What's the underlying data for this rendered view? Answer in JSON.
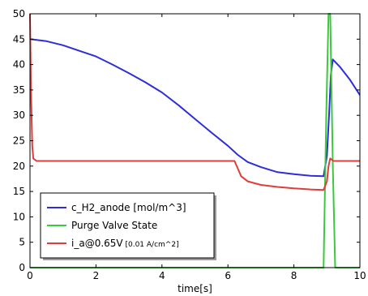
{
  "chart_data": {
    "type": "line",
    "title": "",
    "xlabel": "time[s]",
    "ylabel": "",
    "xlim": [
      0,
      10
    ],
    "ylim": [
      0,
      50
    ],
    "x_ticks": [
      "0",
      "2",
      "4",
      "6",
      "8",
      "10"
    ],
    "y_ticks": [
      "0",
      "5",
      "10",
      "15",
      "20",
      "25",
      "30",
      "35",
      "40",
      "45",
      "50"
    ],
    "grid": false,
    "legend_position": "bottom-left",
    "series": [
      {
        "name": "c_H2_anode [mol/m^3]",
        "color": "#2d2ddc",
        "points": [
          [
            0,
            45.0
          ],
          [
            0.5,
            44.6
          ],
          [
            1,
            43.8
          ],
          [
            1.5,
            42.7
          ],
          [
            2,
            41.6
          ],
          [
            2.5,
            40.0
          ],
          [
            3,
            38.3
          ],
          [
            3.5,
            36.5
          ],
          [
            4,
            34.5
          ],
          [
            4.5,
            32.0
          ],
          [
            5,
            29.3
          ],
          [
            5.5,
            26.6
          ],
          [
            6,
            24.0
          ],
          [
            6.3,
            22.2
          ],
          [
            6.6,
            20.8
          ],
          [
            7,
            19.8
          ],
          [
            7.5,
            18.8
          ],
          [
            8,
            18.4
          ],
          [
            8.5,
            18.1
          ],
          [
            8.9,
            18.0
          ],
          [
            9.0,
            22.0
          ],
          [
            9.07,
            30.5
          ],
          [
            9.12,
            38.0
          ],
          [
            9.18,
            41.0
          ],
          [
            9.4,
            39.5
          ],
          [
            9.7,
            37.0
          ],
          [
            10,
            34.0
          ]
        ]
      },
      {
        "name": "Purge Valve State",
        "color": "#3cc83c",
        "points": [
          [
            0,
            0
          ],
          [
            8.9,
            0
          ],
          [
            8.98,
            30
          ],
          [
            9.05,
            50
          ],
          [
            9.1,
            50
          ],
          [
            9.18,
            20
          ],
          [
            9.25,
            0
          ],
          [
            10,
            0
          ]
        ]
      },
      {
        "name": "i_a@0.65V",
        "name_unit": "[0.01 A/cm^2]",
        "color": "#e03c3c",
        "points": [
          [
            0,
            50
          ],
          [
            0.03,
            35
          ],
          [
            0.07,
            24
          ],
          [
            0.1,
            21.5
          ],
          [
            0.2,
            21.0
          ],
          [
            1,
            21.0
          ],
          [
            2,
            21.0
          ],
          [
            4,
            21.0
          ],
          [
            6.2,
            21.0
          ],
          [
            6.3,
            19.5
          ],
          [
            6.4,
            18.0
          ],
          [
            6.6,
            17.0
          ],
          [
            7,
            16.3
          ],
          [
            7.5,
            15.9
          ],
          [
            8,
            15.6
          ],
          [
            8.5,
            15.4
          ],
          [
            8.9,
            15.3
          ],
          [
            9.0,
            17.0
          ],
          [
            9.05,
            20.0
          ],
          [
            9.1,
            21.5
          ],
          [
            9.2,
            21.0
          ],
          [
            10,
            21.0
          ]
        ]
      }
    ]
  }
}
